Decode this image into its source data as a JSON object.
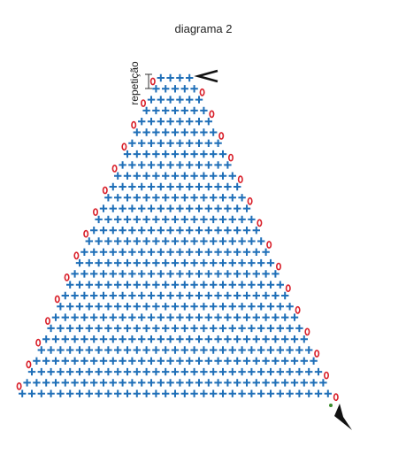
{
  "header": {
    "title": "diagrama 2"
  },
  "labels": {
    "repeat": "repetição"
  }
}
